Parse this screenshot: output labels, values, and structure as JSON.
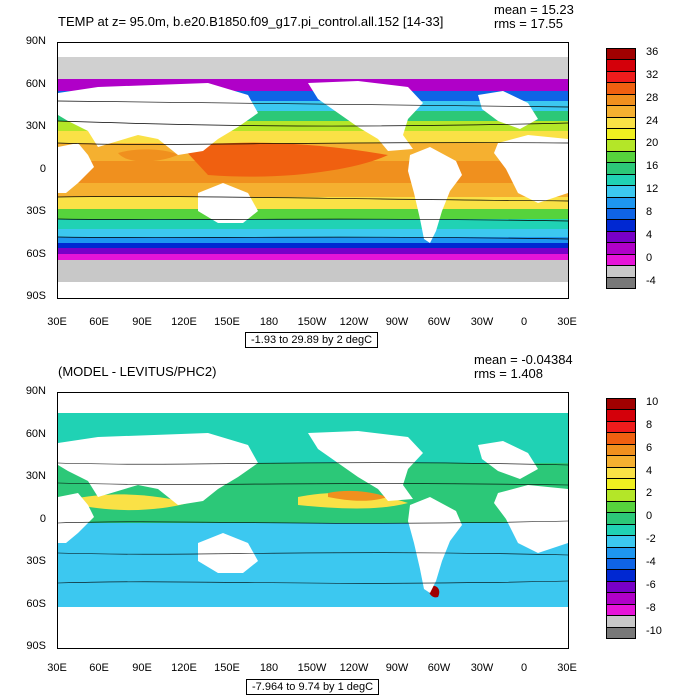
{
  "panel1": {
    "title": "TEMP at z=  95.0m, b.e20.B1850.f09_g17.pi_control.all.152 [14-33]",
    "mean_label": "mean = 15.23",
    "rms_label": "rms = 17.55",
    "range_label": "-1.93 to 29.89 by 2 degC",
    "colorbar_labels": [
      "36",
      "32",
      "28",
      "24",
      "20",
      "16",
      "12",
      "8",
      "4",
      "0",
      "-4"
    ],
    "colorbar_colors": [
      "#a00000",
      "#d4000a",
      "#f01c1c",
      "#f06010",
      "#f0901e",
      "#f5b030",
      "#fae146",
      "#f0f020",
      "#b4e628",
      "#56d33c",
      "#2cc878",
      "#20d2b4",
      "#3cc8f0",
      "#1e96f0",
      "#0f64e6",
      "#0028d2",
      "#7800c8",
      "#b000c8",
      "#e614d8",
      "#c8c8c8",
      "#787878"
    ]
  },
  "panel2": {
    "title": "(MODEL - LEVITUS/PHC2)",
    "mean_label": "mean = -0.04384",
    "rms_label": "rms = 1.408",
    "range_label": "-7.964 to 9.74 by 1 degC",
    "colorbar_labels": [
      "10",
      "8",
      "6",
      "4",
      "2",
      "0",
      "-2",
      "-4",
      "-6",
      "-8",
      "-10"
    ],
    "colorbar_colors": [
      "#a00000",
      "#d4000a",
      "#f01c1c",
      "#f06010",
      "#f0901e",
      "#f5b030",
      "#fae146",
      "#f0f020",
      "#b4e628",
      "#56d33c",
      "#2cc878",
      "#20d2b4",
      "#3cc8f0",
      "#1e96f0",
      "#0f64e6",
      "#0028d2",
      "#7800c8",
      "#b000c8",
      "#e614d8",
      "#c8c8c8",
      "#787878"
    ]
  },
  "axes": {
    "lat_labels": [
      "90N",
      "60N",
      "30N",
      "0",
      "30S",
      "60S",
      "90S"
    ],
    "lon_labels": [
      "30E",
      "60E",
      "90E",
      "120E",
      "150E",
      "180",
      "150W",
      "120W",
      "90W",
      "60W",
      "30W",
      "0",
      "30E"
    ]
  }
}
